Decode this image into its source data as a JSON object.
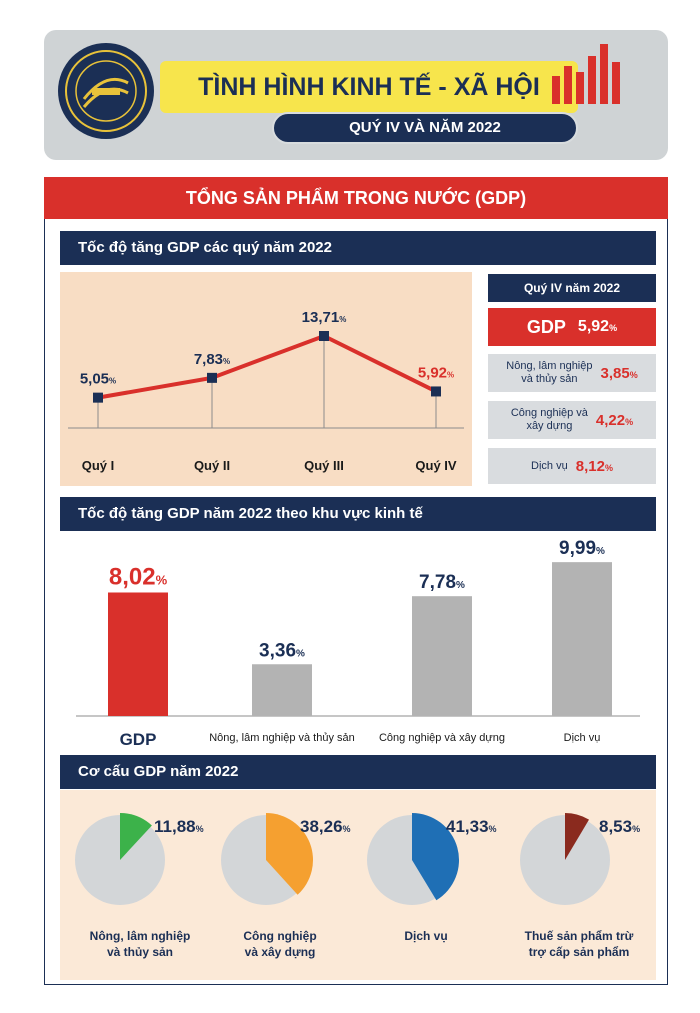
{
  "header": {
    "title": "TÌNH HÌNH KINH TẾ - XÃ HỘI",
    "subtitle": "QUÝ IV VÀ NĂM 2022",
    "logo_text": "CHXHCN VIỆT NAM · TỔNG CỤC THỐNG KÊ · 6 - 5 - 1946"
  },
  "gdp_banner": "TỔNG SẢN PHẨM TRONG NƯỚC (GDP)",
  "sections": {
    "quarterly": "Tốc độ tăng GDP các quý năm 2022",
    "sector": "Tốc độ tăng GDP năm 2022 theo khu vực kinh tế",
    "structure": "Cơ cấu GDP năm 2022"
  },
  "side_panel": {
    "header": "Quý IV năm 2022",
    "gdp_label": "GDP",
    "gdp_value": "5,92",
    "items": [
      {
        "label_lines": [
          "Nông, lâm nghiệp",
          "và thủy sản"
        ],
        "value": "3,85"
      },
      {
        "label_lines": [
          "Công nghiệp và",
          "xây dựng"
        ],
        "value": "4,22"
      },
      {
        "label_lines": [
          "Dịch vụ"
        ],
        "value": "8,12"
      }
    ]
  },
  "colors": {
    "navy": "#1b2f55",
    "red": "#d9302b",
    "grey": "#b3b3b3",
    "pie_grey": "#d3d6d8",
    "green": "#3cb24a",
    "orange": "#f5a030",
    "blue": "#1f6fb5",
    "brown": "#8a2a1e"
  },
  "chart_data": [
    {
      "type": "line",
      "title": "Tốc độ tăng GDP các quý năm 2022",
      "categories": [
        "Quý I",
        "Quý II",
        "Quý III",
        "Quý IV"
      ],
      "values": [
        5.05,
        7.83,
        13.71,
        5.92
      ],
      "labels": [
        "5,05",
        "7,83",
        "13,71",
        "5,92"
      ],
      "unit": "%",
      "ylim": [
        0,
        16
      ]
    },
    {
      "type": "bar",
      "title": "Tốc độ tăng GDP năm 2022 theo khu vực kinh tế",
      "categories": [
        "GDP",
        "Nông, lâm nghiệp và thủy sản",
        "Công nghiệp và xây dựng",
        "Dịch vụ"
      ],
      "values": [
        8.02,
        3.36,
        7.78,
        9.99
      ],
      "labels": [
        "8,02",
        "3,36",
        "7,78",
        "9,99"
      ],
      "unit": "%",
      "ylim": [
        0,
        10
      ]
    },
    {
      "type": "pie",
      "title": "Cơ cấu GDP năm 2022",
      "slices": [
        {
          "label_lines": [
            "Nông, lâm nghiệp",
            "và thủy sản"
          ],
          "value": 11.88,
          "label": "11,88",
          "color_key": "green"
        },
        {
          "label_lines": [
            "Công nghiệp",
            "và xây dựng"
          ],
          "value": 38.26,
          "label": "38,26",
          "color_key": "orange"
        },
        {
          "label_lines": [
            "Dịch vụ"
          ],
          "value": 41.33,
          "label": "41,33",
          "color_key": "blue"
        },
        {
          "label_lines": [
            "Thuế sản phẩm trừ",
            "trợ cấp sản phẩm"
          ],
          "value": 8.53,
          "label": "8,53",
          "color_key": "brown"
        }
      ],
      "unit": "%"
    }
  ]
}
